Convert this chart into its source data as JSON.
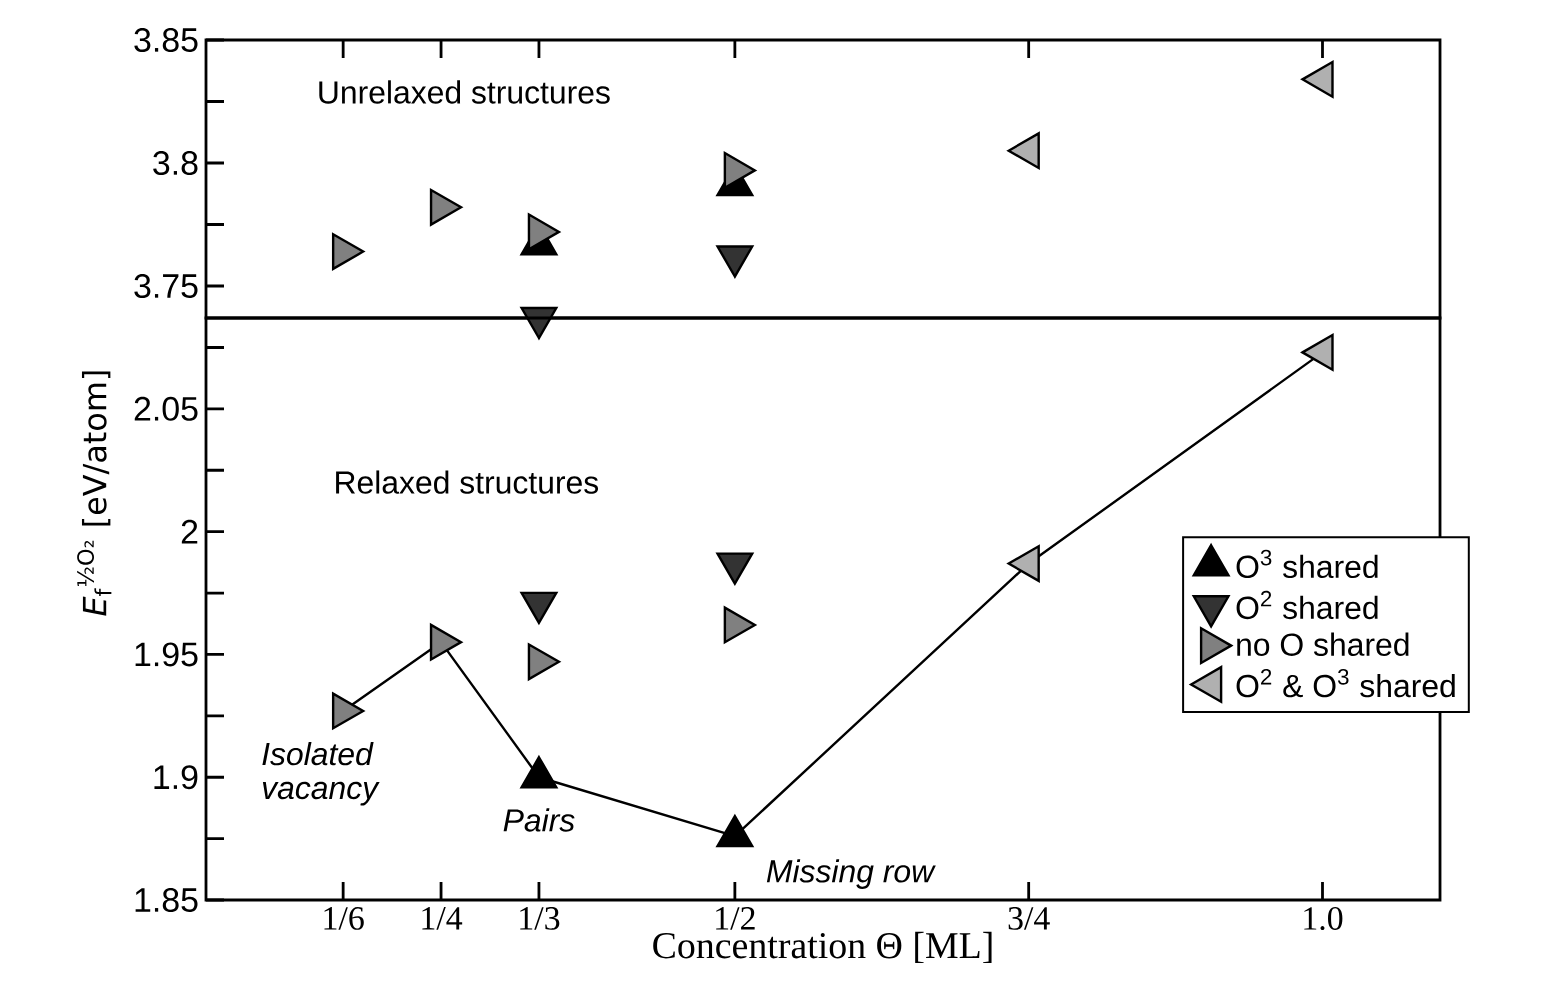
{
  "chart_data": [
    {
      "type": "scatter",
      "xlim": [
        0.05,
        1.1
      ],
      "ylim": [
        3.737,
        3.85
      ],
      "xticks": [
        {
          "value": 0.1667,
          "label": null
        },
        {
          "value": 0.25,
          "label": null
        },
        {
          "value": 0.3333,
          "label": null
        },
        {
          "value": 0.5,
          "label": null
        },
        {
          "value": 0.75,
          "label": null
        },
        {
          "value": 1,
          "label": null
        }
      ],
      "yticks": [
        3.75,
        {
          "value": 3.775,
          "label": null
        },
        3.8,
        {
          "value": 3.825,
          "label": null
        },
        3.85
      ],
      "tick_labels": "y",
      "annotations": [
        "Unrelaxed structures"
      ],
      "series": [
        {
          "type": "scatter",
          "marker": "triangle",
          "color": "#000000",
          "x": [
            0.3333,
            0.5
          ],
          "values": [
            3.767,
            3.791
          ]
        },
        {
          "type": "scatter",
          "marker": "triangle-down",
          "color": "#333333",
          "x": [
            0.3333,
            0.5
          ],
          "values": [
            3.737,
            3.762
          ]
        },
        {
          "type": "scatter",
          "marker": "triangle-right",
          "color": "#808080",
          "x": [
            0.1667,
            0.25,
            0.3333,
            0.5
          ],
          "values": [
            3.764,
            3.782,
            3.772,
            3.797
          ]
        },
        {
          "type": "scatter",
          "marker": "triangle-left",
          "color": "#b0b0b0",
          "x": [
            0.75,
            1
          ],
          "values": [
            3.805,
            3.834
          ]
        }
      ]
    },
    {
      "type": "scatter",
      "xlim": [
        0.05,
        1.1
      ],
      "ylim": [
        1.85,
        2.087
      ],
      "xlabel": "Concentration Θ [ML]",
      "ylabel": "*E*$_{f}$$^{½O₂}$  [eV/atom]",
      "xticks": [
        {
          "value": 0.1667,
          "label": "1/6"
        },
        {
          "value": 0.25,
          "label": "1/4"
        },
        {
          "value": 0.3333,
          "label": "1/3"
        },
        {
          "value": 0.5,
          "label": "1/2"
        },
        {
          "value": 0.75,
          "label": "3/4"
        },
        {
          "value": 1,
          "label": "1.0"
        }
      ],
      "yticks": [
        1.85,
        {
          "value": 1.875,
          "label": null
        },
        1.9,
        {
          "value": 1.925,
          "label": null
        },
        1.95,
        {
          "value": 1.975,
          "label": null
        },
        2,
        {
          "value": 2.025,
          "label": null
        },
        2.05,
        {
          "value": 2.075,
          "label": null
        }
      ],
      "legend": "right",
      "annotations": [
        "Relaxed structures",
        {
          "text": "Isolated vacancy",
          "x": 0.1667,
          "y": 1.927
        },
        {
          "text": "Pairs",
          "x": 0.3333,
          "y": 1.9
        },
        {
          "text": "Missing row",
          "x": 0.5,
          "y": 1.876
        }
      ],
      "series": [
        {
          "type": "line",
          "line_style": "solid",
          "color": "#000000",
          "x": [
            0.1667,
            0.25,
            0.3333,
            0.5,
            0.75,
            1
          ],
          "values": [
            1.927,
            1.955,
            1.9,
            1.876,
            1.987,
            2.073
          ]
        },
        {
          "type": "scatter",
          "name": "O$^{3}$ shared",
          "marker": "triangle",
          "color": "#000000",
          "x": [
            0.3333,
            0.5
          ],
          "values": [
            1.9,
            1.876
          ]
        },
        {
          "type": "scatter",
          "name": "O$^{2}$ shared",
          "marker": "triangle-down",
          "color": "#333333",
          "x": [
            0.3333,
            0.5
          ],
          "values": [
            1.971,
            1.987
          ]
        },
        {
          "type": "scatter",
          "name": "no O shared",
          "marker": "triangle-right",
          "color": "#808080",
          "x": [
            0.1667,
            0.25,
            0.3333,
            0.5
          ],
          "values": [
            1.927,
            1.955,
            1.947,
            1.962
          ]
        },
        {
          "type": "scatter",
          "name": "O$^{2}$ & O$^{3}$ shared",
          "marker": "triangle-left",
          "color": "#b0b0b0",
          "x": [
            0.75,
            1
          ],
          "values": [
            1.987,
            2.073
          ]
        }
      ]
    }
  ]
}
